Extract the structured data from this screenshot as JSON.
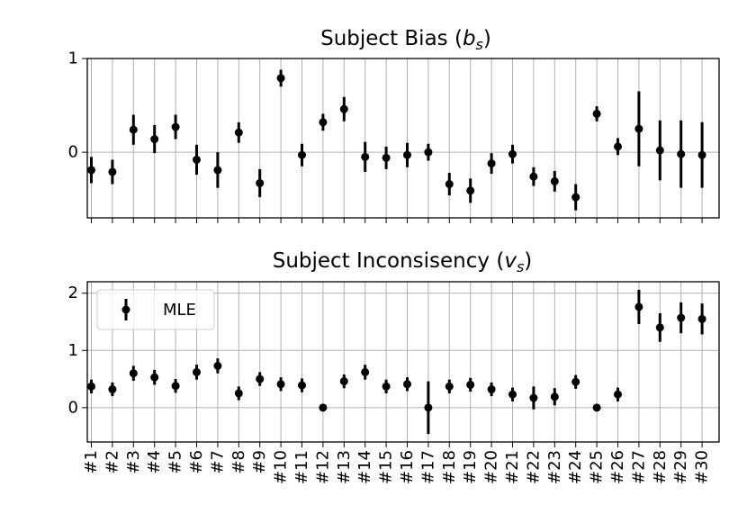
{
  "chart_data": [
    {
      "type": "scatter",
      "title": "Subject Bias (",
      "title_symbol": "b",
      "title_subscript": "s",
      "title_suffix": ")",
      "categories": [
        "#1",
        "#2",
        "#3",
        "#4",
        "#5",
        "#6",
        "#7",
        "#8",
        "#9",
        "#10",
        "#11",
        "#12",
        "#13",
        "#14",
        "#15",
        "#16",
        "#17",
        "#18",
        "#19",
        "#20",
        "#21",
        "#22",
        "#23",
        "#24",
        "#25",
        "#26",
        "#27",
        "#28",
        "#29",
        "#30"
      ],
      "values": [
        -0.19,
        -0.21,
        0.24,
        0.14,
        0.27,
        -0.08,
        -0.19,
        0.21,
        -0.33,
        0.79,
        -0.03,
        0.32,
        0.46,
        -0.05,
        -0.06,
        -0.03,
        0.0,
        -0.34,
        -0.41,
        -0.12,
        -0.02,
        -0.26,
        -0.31,
        -0.48,
        0.41,
        0.06,
        0.25,
        0.02,
        -0.02,
        -0.03
      ],
      "errors": [
        0.14,
        0.13,
        0.16,
        0.15,
        0.13,
        0.16,
        0.19,
        0.11,
        0.15,
        0.09,
        0.12,
        0.09,
        0.13,
        0.16,
        0.12,
        0.13,
        0.09,
        0.12,
        0.13,
        0.11,
        0.1,
        0.1,
        0.11,
        0.14,
        0.08,
        0.09,
        0.4,
        0.32,
        0.36,
        0.35
      ],
      "ylim": [
        -0.7,
        1.0
      ],
      "yticks": [
        "0",
        "1"
      ],
      "ytick_values": [
        0,
        1
      ],
      "grid": true
    },
    {
      "type": "scatter",
      "title": "Subject Inconsisency (",
      "title_symbol": "v",
      "title_subscript": "s",
      "title_suffix": ")",
      "categories": [
        "#1",
        "#2",
        "#3",
        "#4",
        "#5",
        "#6",
        "#7",
        "#8",
        "#9",
        "#10",
        "#11",
        "#12",
        "#13",
        "#14",
        "#15",
        "#16",
        "#17",
        "#18",
        "#19",
        "#20",
        "#21",
        "#22",
        "#23",
        "#24",
        "#25",
        "#26",
        "#27",
        "#28",
        "#29",
        "#30"
      ],
      "series": [
        {
          "name": "MLE",
          "values": [
            0.37,
            0.32,
            0.6,
            0.53,
            0.38,
            0.62,
            0.73,
            0.25,
            0.5,
            0.41,
            0.39,
            0.0,
            0.46,
            0.62,
            0.37,
            0.41,
            0.0,
            0.37,
            0.4,
            0.32,
            0.23,
            0.17,
            0.19,
            0.45,
            0.0,
            0.23,
            1.76,
            1.4,
            1.57,
            1.55
          ],
          "errors": [
            0.12,
            0.12,
            0.13,
            0.13,
            0.12,
            0.13,
            0.13,
            0.12,
            0.12,
            0.12,
            0.12,
            0.02,
            0.12,
            0.13,
            0.12,
            0.12,
            0.46,
            0.12,
            0.12,
            0.12,
            0.12,
            0.2,
            0.15,
            0.12,
            0.02,
            0.12,
            0.3,
            0.25,
            0.27,
            0.27
          ]
        }
      ],
      "ylim": [
        -0.6,
        2.2
      ],
      "yticks": [
        "0",
        "1",
        "2"
      ],
      "ytick_values": [
        0,
        1,
        2
      ],
      "legend": {
        "label": "MLE",
        "placement": "top-left"
      },
      "grid": true
    }
  ]
}
